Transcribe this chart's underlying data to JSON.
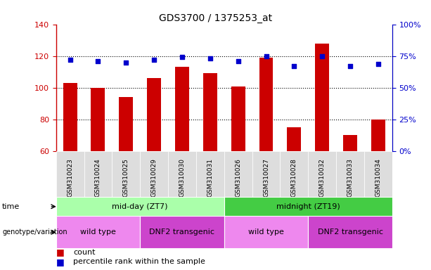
{
  "title": "GDS3700 / 1375253_at",
  "samples": [
    "GSM310023",
    "GSM310024",
    "GSM310025",
    "GSM310029",
    "GSM310030",
    "GSM310031",
    "GSM310026",
    "GSM310027",
    "GSM310028",
    "GSM310032",
    "GSM310033",
    "GSM310034"
  ],
  "count_values": [
    103,
    100,
    94,
    106,
    113,
    109,
    101,
    119,
    75,
    128,
    70,
    80
  ],
  "percentile_values": [
    72,
    71,
    70,
    72,
    74,
    73,
    71,
    75,
    67,
    75,
    67,
    69
  ],
  "ylim_left": [
    60,
    140
  ],
  "ylim_right": [
    0,
    100
  ],
  "yticks_left": [
    60,
    80,
    100,
    120,
    140
  ],
  "yticks_right": [
    0,
    25,
    50,
    75,
    100
  ],
  "ytick_labels_right": [
    "0%",
    "25%",
    "50%",
    "75%",
    "100%"
  ],
  "bar_color": "#cc0000",
  "dot_color": "#0000cc",
  "bar_width": 0.5,
  "gridline_color": "black",
  "gridline_style": "dotted",
  "gridline_values": [
    80,
    100,
    120
  ],
  "time_groups": [
    {
      "text": "mid-day (ZT7)",
      "start": 0,
      "end": 5,
      "color": "#aaffaa"
    },
    {
      "text": "midnight (ZT19)",
      "start": 6,
      "end": 11,
      "color": "#44cc44"
    }
  ],
  "genotype_groups": [
    {
      "text": "wild type",
      "start": 0,
      "end": 2,
      "color": "#ee88ee"
    },
    {
      "text": "DNF2 transgenic",
      "start": 3,
      "end": 5,
      "color": "#cc44cc"
    },
    {
      "text": "wild type",
      "start": 6,
      "end": 8,
      "color": "#ee88ee"
    },
    {
      "text": "DNF2 transgenic",
      "start": 9,
      "end": 11,
      "color": "#cc44cc"
    }
  ],
  "legend_count_label": "count",
  "legend_percentile_label": "percentile rank within the sample",
  "left_axis_color": "#cc0000",
  "right_axis_color": "#0000cc",
  "sample_label_bg": "#dddddd"
}
